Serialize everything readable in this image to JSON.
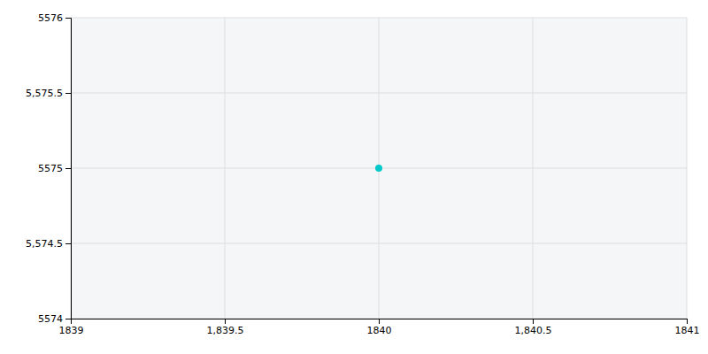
{
  "chart_data": {
    "type": "scatter",
    "x": [
      1840
    ],
    "values": [
      5575
    ],
    "color": "#00c8c8",
    "marker": "circle",
    "xlim": [
      1839,
      1841
    ],
    "xticks": [
      1839,
      {
        "value": 1839.5,
        "label": "1,839.5"
      },
      1840,
      {
        "value": 1840.5,
        "label": "1,840.5"
      },
      1841
    ],
    "ylim": [
      5574,
      5576
    ],
    "yticks": [
      5574,
      {
        "value": 5574.5,
        "label": "5,574.5"
      },
      5575,
      {
        "value": 5575.5,
        "label": "5,575.5"
      },
      5576
    ],
    "grid": true
  }
}
